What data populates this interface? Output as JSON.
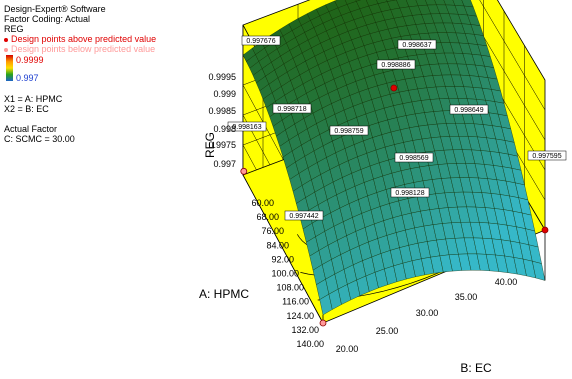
{
  "info": {
    "software": "Design-Expert® Software",
    "coding": "Factor Coding: Actual",
    "response": "REG",
    "above": "Design points above predicted value",
    "below": "Design points below predicted value",
    "max": "0.9999",
    "min": "0.997",
    "x1": "X1 = A: HPMC",
    "x2": "X2 = B: EC",
    "actual_title": "Actual Factor",
    "actual_value": "C: SCMC = 30.00"
  },
  "colors": {
    "above": "#e00000",
    "below": "#ff9a9a",
    "box_fill": "#ffff00",
    "surface_high": "#1e5e0a",
    "surface_low": "#36b8c8",
    "grid": "#000000"
  },
  "chart_data": {
    "type": "surface3d",
    "zlabel": "REG",
    "xlabel": "A: HPMC",
    "ylabel": "B: EC",
    "z_ticks": [
      "0.997",
      "0.9975",
      "0.998",
      "0.9985",
      "0.999",
      "0.9995"
    ],
    "a_ticks": [
      "60.00",
      "68.00",
      "76.00",
      "84.00",
      "92.00",
      "100.00",
      "108.00",
      "116.00",
      "124.00",
      "132.00",
      "140.00"
    ],
    "b_ticks": [
      "20.00",
      "25.00",
      "30.00",
      "35.00",
      "40.00"
    ],
    "a_range": [
      60,
      140
    ],
    "b_range": [
      20,
      40
    ],
    "z_range": [
      0.997,
      0.9999
    ],
    "annotations": [
      {
        "label": "0.997676",
        "a": 60,
        "b": 20
      },
      {
        "label": "0.998637",
        "a": 60,
        "b": 40
      },
      {
        "label": "0.998886",
        "a": 60,
        "b": 30
      },
      {
        "label": "0.998718",
        "a": 70,
        "b": 22
      },
      {
        "label": "0.998649",
        "a": 75,
        "b": 40
      },
      {
        "label": "0.998163",
        "a": 100,
        "b": 20
      },
      {
        "label": "0.998759",
        "a": 100,
        "b": 30
      },
      {
        "label": "0.998569",
        "a": 100,
        "b": 40
      },
      {
        "label": "0.998128",
        "a": 120,
        "b": 32
      },
      {
        "label": "0.997595",
        "a": 100,
        "b": 40
      },
      {
        "label": "0.997442",
        "a": 140,
        "b": 20
      }
    ]
  }
}
